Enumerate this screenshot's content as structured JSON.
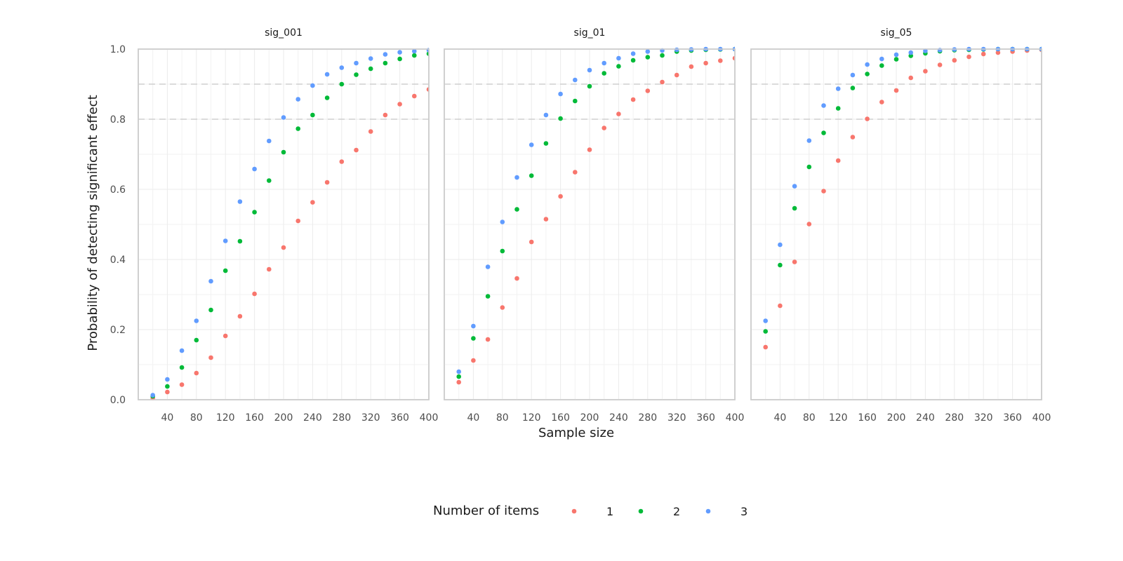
{
  "chart_data": {
    "type": "scatter",
    "xlabel": "Sample size",
    "ylabel": "Probability of detecting significant effect",
    "xlim": [
      0,
      400
    ],
    "ylim": [
      0,
      1
    ],
    "x_ticks": [
      40,
      80,
      120,
      160,
      200,
      240,
      280,
      320,
      360,
      400
    ],
    "y_ticks": [
      0.0,
      0.2,
      0.4,
      0.6,
      0.8,
      1.0
    ],
    "y_tick_labels": [
      "0.0",
      "0.2",
      "0.4",
      "0.6",
      "0.8",
      "1.0"
    ],
    "reference_lines_y": [
      0.8,
      0.9
    ],
    "grid": true,
    "legend_title": "Number of items",
    "legend_position": "bottom",
    "series_meta": [
      {
        "name": "1",
        "color": "#F8766D"
      },
      {
        "name": "2",
        "color": "#00BA38"
      },
      {
        "name": "3",
        "color": "#619CFF"
      }
    ],
    "x": [
      20,
      40,
      60,
      80,
      100,
      120,
      140,
      160,
      180,
      200,
      220,
      240,
      260,
      280,
      300,
      320,
      340,
      360,
      380,
      400
    ],
    "panels": [
      {
        "label": "sig_001",
        "series": [
          {
            "name": "1",
            "values": [
              0.005,
              0.022,
              0.043,
              0.076,
              0.12,
              0.182,
              0.238,
              0.302,
              0.372,
              0.434,
              0.51,
              0.563,
              0.62,
              0.679,
              0.712,
              0.765,
              0.812,
              0.843,
              0.866,
              0.885
            ]
          },
          {
            "name": "2",
            "values": [
              0.01,
              0.038,
              0.092,
              0.17,
              0.256,
              0.368,
              0.452,
              0.535,
              0.625,
              0.706,
              0.773,
              0.812,
              0.861,
              0.9,
              0.927,
              0.944,
              0.96,
              0.972,
              0.982,
              0.987
            ]
          },
          {
            "name": "3",
            "values": [
              0.013,
              0.058,
              0.14,
              0.225,
              0.338,
              0.453,
              0.565,
              0.658,
              0.738,
              0.805,
              0.857,
              0.896,
              0.928,
              0.947,
              0.96,
              0.973,
              0.985,
              0.991,
              0.994,
              0.997
            ]
          }
        ]
      },
      {
        "label": "sig_01",
        "series": [
          {
            "name": "1",
            "values": [
              0.05,
              0.112,
              0.172,
              0.263,
              0.346,
              0.45,
              0.515,
              0.58,
              0.649,
              0.713,
              0.775,
              0.815,
              0.856,
              0.881,
              0.906,
              0.926,
              0.95,
              0.96,
              0.967,
              0.974
            ]
          },
          {
            "name": "2",
            "values": [
              0.066,
              0.175,
              0.295,
              0.424,
              0.543,
              0.639,
              0.731,
              0.802,
              0.852,
              0.894,
              0.931,
              0.951,
              0.968,
              0.977,
              0.982,
              0.993,
              0.996,
              0.998,
              0.999,
              1.0
            ]
          },
          {
            "name": "3",
            "values": [
              0.08,
              0.21,
              0.379,
              0.507,
              0.634,
              0.727,
              0.812,
              0.872,
              0.912,
              0.94,
              0.96,
              0.974,
              0.987,
              0.993,
              0.996,
              0.998,
              0.999,
              1.0,
              1.0,
              1.0
            ]
          }
        ]
      },
      {
        "label": "sig_05",
        "series": [
          {
            "name": "1",
            "values": [
              0.15,
              0.268,
              0.393,
              0.501,
              0.595,
              0.682,
              0.749,
              0.801,
              0.849,
              0.882,
              0.918,
              0.937,
              0.955,
              0.968,
              0.978,
              0.986,
              0.99,
              0.993,
              0.996,
              0.998
            ]
          },
          {
            "name": "2",
            "values": [
              0.195,
              0.384,
              0.546,
              0.664,
              0.761,
              0.831,
              0.889,
              0.929,
              0.953,
              0.971,
              0.981,
              0.988,
              0.994,
              0.997,
              0.998,
              0.999,
              1.0,
              1.0,
              1.0,
              1.0
            ]
          },
          {
            "name": "3",
            "values": [
              0.225,
              0.442,
              0.609,
              0.739,
              0.839,
              0.887,
              0.926,
              0.956,
              0.972,
              0.984,
              0.99,
              0.995,
              0.997,
              0.999,
              1.0,
              1.0,
              1.0,
              1.0,
              1.0,
              1.0
            ]
          }
        ]
      }
    ]
  }
}
